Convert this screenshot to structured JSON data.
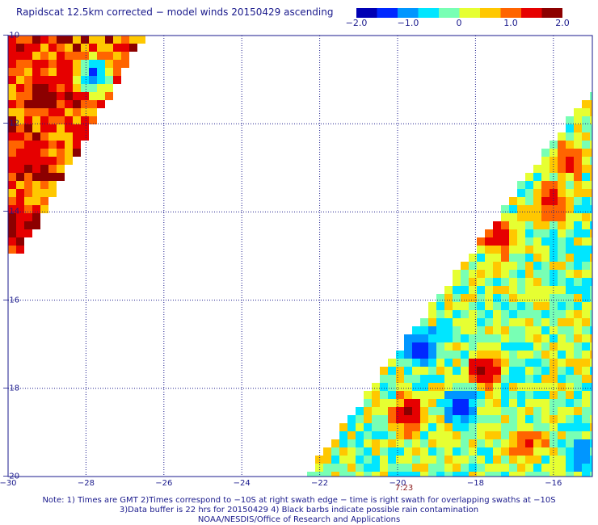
{
  "title": "Rapidscat 12.5km corrected − model winds 20150429 ascending",
  "colorbar": {
    "min": -2.0,
    "max": 2.0,
    "ticks": [
      "−2.0",
      "−1.0",
      "0",
      "1.0",
      "2.0"
    ],
    "colors": [
      "#0000b4",
      "#0028ff",
      "#0096ff",
      "#00e6ff",
      "#78ffb4",
      "#e6ff32",
      "#ffc800",
      "#ff6400",
      "#e60000",
      "#8c0000"
    ]
  },
  "lat_labels": [
    "−10",
    "−12",
    "−14",
    "−16",
    "−18",
    "−20"
  ],
  "lon_labels": [
    "−30",
    "−28",
    "−26",
    "−24",
    "−22",
    "−20",
    "−18",
    "−16"
  ],
  "time_label": "7:23",
  "footer": [
    "Note: 1) Times are GMT 2)Times correspond to −10S at right swath edge − time is right swath for overlapping swaths at −10S",
    "3)Data buffer is 22 hrs for 20150429 4) Black barbs indicate possible rain contamination",
    "NOAA/NESDIS/Office of Research and Applications"
  ],
  "chart_data": {
    "type": "heatmap",
    "variable": "wind speed difference (corrected − model)",
    "lat_range": [
      -20,
      -10
    ],
    "lon_range": [
      -30,
      -15
    ],
    "grid": true,
    "swaths": [
      {
        "name": "upper-left swath",
        "mean": 1.1,
        "hotspots": [
          {
            "lat": -11.3,
            "lon": -29.1,
            "value": 2.0
          },
          {
            "lat": -12.6,
            "lon": -29.4,
            "value": 1.7
          },
          {
            "lat": -14.4,
            "lon": -29.9,
            "value": 1.9
          }
        ],
        "coldspots": [
          {
            "lat": -10.9,
            "lon": -27.8,
            "value": -1.6
          }
        ]
      },
      {
        "name": "lower-right swath",
        "mean": 0.0,
        "hotspots": [
          {
            "lat": -12.8,
            "lon": -15.6,
            "value": 1.6
          },
          {
            "lat": -13.8,
            "lon": -16.1,
            "value": 1.7
          },
          {
            "lat": -14.6,
            "lon": -17.4,
            "value": 1.7
          },
          {
            "lat": -17.6,
            "lon": -17.8,
            "value": 2.0
          },
          {
            "lat": -18.6,
            "lon": -19.7,
            "value": 2.0
          },
          {
            "lat": -19.3,
            "lon": -16.7,
            "value": 1.5
          }
        ],
        "coldspots": [
          {
            "lat": -17.1,
            "lon": -19.4,
            "value": -1.7
          },
          {
            "lat": -18.4,
            "lon": -18.4,
            "value": -1.8
          },
          {
            "lat": -19.5,
            "lon": -15.3,
            "value": -1.2
          }
        ]
      }
    ]
  }
}
